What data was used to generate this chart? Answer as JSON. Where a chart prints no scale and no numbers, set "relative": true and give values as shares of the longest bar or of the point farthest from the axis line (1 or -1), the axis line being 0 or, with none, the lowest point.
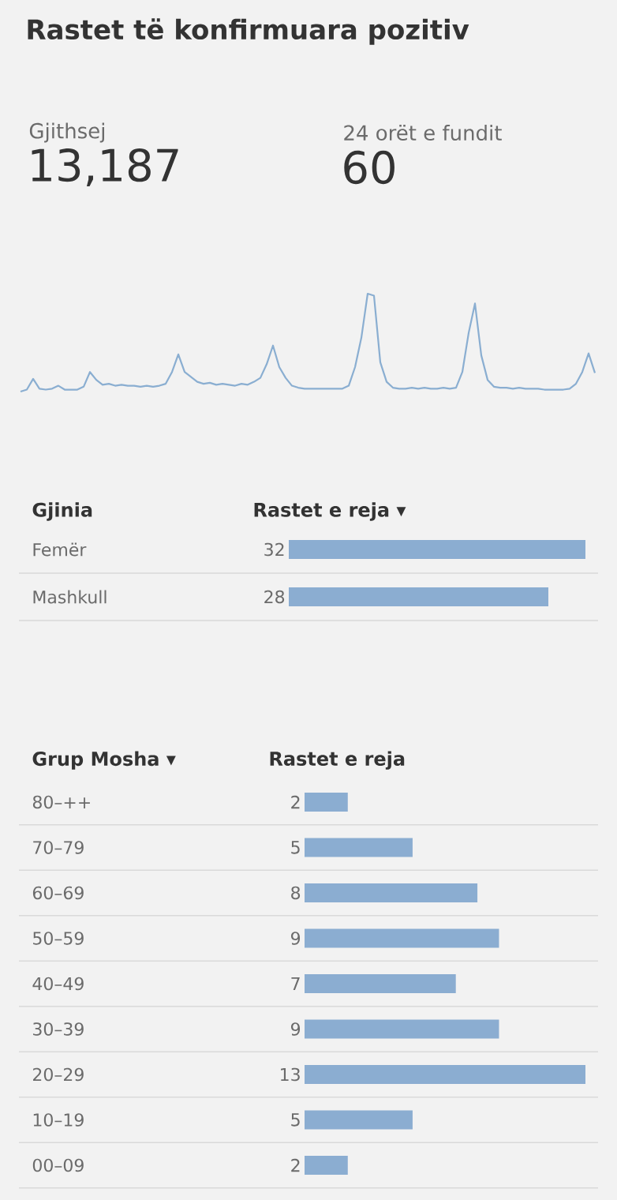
{
  "chart_data": [
    {
      "type": "other",
      "title": "Rastet të konfirmuara pozitiv",
      "annotations": [
        "Gjithsej",
        "13,187",
        "24 orët e fundit",
        "60"
      ]
    },
    {
      "type": "line",
      "relative": true,
      "color": "#8aaed1",
      "categories": [
        null,
        null,
        null,
        null,
        null,
        null,
        null,
        null,
        null,
        null,
        null,
        null,
        null,
        null,
        null,
        null,
        null,
        null,
        null,
        null,
        null,
        null,
        null,
        null,
        null,
        null,
        null,
        null,
        null,
        null,
        null,
        null,
        null,
        null,
        null,
        null,
        null,
        null,
        null,
        null,
        null,
        null,
        null,
        null,
        null,
        null,
        null,
        null,
        null,
        null,
        null,
        null,
        null,
        null,
        null,
        null,
        null,
        null,
        null,
        null,
        null,
        null,
        null,
        null,
        null,
        null,
        null,
        null,
        null,
        null,
        null,
        null,
        null,
        null,
        null,
        null,
        null,
        null,
        null,
        null,
        null,
        null,
        null,
        null,
        null,
        null,
        null,
        null,
        null,
        null,
        null,
        null
      ],
      "values": [
        0,
        0.02,
        0.13,
        0.03,
        0.02,
        0.03,
        0.06,
        0.02,
        0.02,
        0.02,
        0.05,
        0.2,
        0.12,
        0.07,
        0.08,
        0.06,
        0.07,
        0.06,
        0.06,
        0.05,
        0.06,
        0.05,
        0.06,
        0.08,
        0.2,
        0.38,
        0.2,
        0.15,
        0.1,
        0.08,
        0.09,
        0.07,
        0.08,
        0.07,
        0.06,
        0.08,
        0.07,
        0.1,
        0.14,
        0.28,
        0.47,
        0.25,
        0.14,
        0.06,
        0.04,
        0.03,
        0.03,
        0.03,
        0.03,
        0.03,
        0.03,
        0.03,
        0.06,
        0.25,
        0.55,
        1,
        0.98,
        0.3,
        0.1,
        0.04,
        0.03,
        0.03,
        0.04,
        0.03,
        0.04,
        0.03,
        0.03,
        0.04,
        0.03,
        0.04,
        0.2,
        0.6,
        0.9,
        0.37,
        0.12,
        0.05,
        0.04,
        0.04,
        0.03,
        0.04,
        0.03,
        0.03,
        0.03,
        0.02,
        0.02,
        0.02,
        0.02,
        0.03,
        0.08,
        0.2,
        0.39,
        0.19
      ]
    },
    {
      "type": "bar",
      "orientation": "horizontal",
      "ylabel": "Gjinia",
      "xlabel": "Rastet e reja ▾",
      "color": "#8badd1",
      "data_labels": true,
      "categories": [
        "Femër",
        "Mashkull"
      ],
      "values": [
        32,
        28
      ]
    },
    {
      "type": "bar",
      "orientation": "horizontal",
      "ylabel": "Grup Mosha ▾",
      "xlabel": "Rastet e reja",
      "color": "#8badd1",
      "data_labels": true,
      "categories": [
        "80–++",
        "70–79",
        "60–69",
        "50–59",
        "40–49",
        "30–39",
        "20–29",
        "10–19",
        "00–09"
      ],
      "values": [
        2,
        5,
        8,
        9,
        7,
        9,
        13,
        5,
        2
      ]
    }
  ]
}
